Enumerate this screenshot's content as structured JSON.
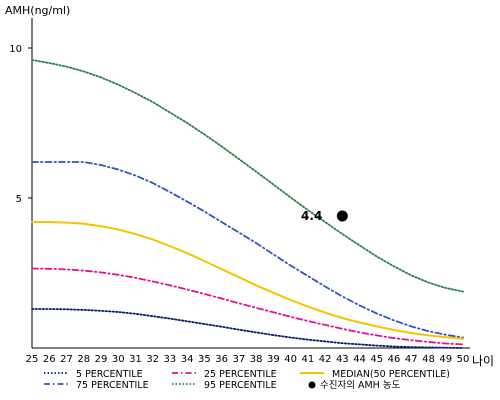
{
  "chart_data": {
    "type": "line",
    "ylabel": "AMH(ng/ml)",
    "xlabel": "나이",
    "x": [
      25,
      26,
      27,
      28,
      29,
      30,
      31,
      32,
      33,
      34,
      35,
      36,
      37,
      38,
      39,
      40,
      41,
      42,
      43,
      44,
      45,
      46,
      47,
      48,
      49,
      50
    ],
    "xlim": [
      25,
      50
    ],
    "ylim": [
      0,
      11
    ],
    "yticks": [
      5,
      10
    ],
    "grid": false,
    "legend_position": "bottom",
    "series": [
      {
        "name": "5 PERCENTILE",
        "color": "#0a1a6a",
        "dash": "dotted",
        "values": [
          1.3,
          1.3,
          1.29,
          1.27,
          1.24,
          1.2,
          1.14,
          1.06,
          0.98,
          0.89,
          0.8,
          0.71,
          0.61,
          0.52,
          0.43,
          0.35,
          0.28,
          0.22,
          0.16,
          0.12,
          0.08,
          0.05,
          0.03,
          0.02,
          0.01,
          0.0
        ]
      },
      {
        "name": "25 PERCENTILE",
        "color": "#e0158a",
        "dash": "dashdot",
        "values": [
          2.65,
          2.64,
          2.62,
          2.58,
          2.52,
          2.44,
          2.34,
          2.22,
          2.09,
          1.95,
          1.8,
          1.65,
          1.49,
          1.34,
          1.19,
          1.04,
          0.9,
          0.77,
          0.64,
          0.52,
          0.42,
          0.33,
          0.26,
          0.2,
          0.15,
          0.12
        ]
      },
      {
        "name": "75 PERCENTILE",
        "color": "#3355bb",
        "dash": "dashdot",
        "values": [
          6.2,
          6.2,
          6.2,
          6.2,
          6.1,
          5.95,
          5.75,
          5.5,
          5.2,
          4.88,
          4.55,
          4.2,
          3.85,
          3.5,
          3.12,
          2.75,
          2.4,
          2.05,
          1.72,
          1.42,
          1.15,
          0.92,
          0.72,
          0.56,
          0.44,
          0.35
        ]
      },
      {
        "name": "95 PERCENTILE",
        "color": "#2e7d4f",
        "dash": "dotted",
        "values": [
          9.6,
          9.5,
          9.38,
          9.22,
          9.02,
          8.78,
          8.5,
          8.2,
          7.85,
          7.5,
          7.12,
          6.72,
          6.3,
          5.88,
          5.45,
          5.02,
          4.6,
          4.2,
          3.8,
          3.42,
          3.05,
          2.72,
          2.42,
          2.18,
          2.0,
          1.88
        ]
      },
      {
        "name": "MEDIAN(50 PERCENTILE)",
        "color": "#f5c400",
        "dash": "solid",
        "values": [
          4.2,
          4.2,
          4.18,
          4.14,
          4.06,
          3.95,
          3.8,
          3.62,
          3.4,
          3.16,
          2.9,
          2.63,
          2.36,
          2.09,
          1.84,
          1.6,
          1.38,
          1.18,
          1.0,
          0.85,
          0.72,
          0.6,
          0.5,
          0.42,
          0.36,
          0.31
        ]
      }
    ],
    "legend_order": [
      0,
      1,
      4,
      2,
      3
    ],
    "marker": {
      "name": "수진자의 AMH 농도",
      "x": 43,
      "y": 4.4,
      "label": "4.4",
      "color": "#000000"
    }
  }
}
